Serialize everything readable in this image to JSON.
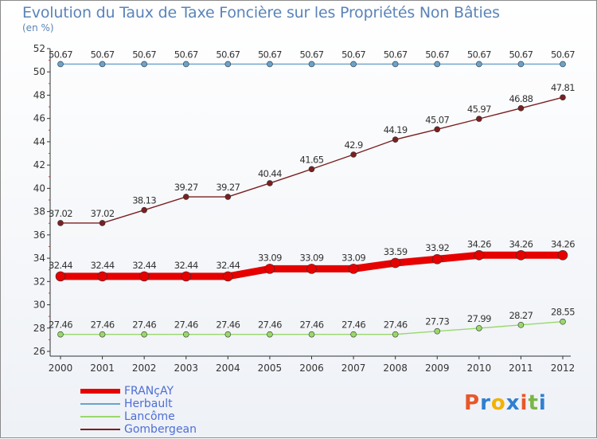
{
  "header": {
    "title": "Evolution du Taux de Taxe Foncière sur les Propriétés Non Bâties",
    "subtitle": "(en %)"
  },
  "logo": {
    "text": "Proxiti",
    "colors": [
      "#e8572a",
      "#2f7fd1",
      "#f2b200",
      "#2f7fd1",
      "#e8572a",
      "#7ab648",
      "#2f7fd1"
    ]
  },
  "chart_data": {
    "type": "line",
    "title": "Evolution du Taux de Taxe Foncière sur les Propriétés Non Bâties",
    "subtitle": "(en %)",
    "xlabel": "",
    "ylabel": "",
    "categories": [
      "2000",
      "2001",
      "2002",
      "2003",
      "2004",
      "2005",
      "2006",
      "2007",
      "2008",
      "2009",
      "2010",
      "2011",
      "2012"
    ],
    "ylim": [
      26,
      52
    ],
    "yticks": [
      26,
      28,
      30,
      32,
      34,
      36,
      38,
      40,
      42,
      44,
      46,
      48,
      50,
      52
    ],
    "grid": false,
    "legend_position": "bottom-left",
    "series": [
      {
        "name": "FRANçAY",
        "color": "#e60000",
        "values": [
          32.44,
          32.44,
          32.44,
          32.44,
          32.44,
          33.09,
          33.09,
          33.09,
          33.59,
          33.92,
          34.26,
          34.26,
          34.26
        ],
        "labels": [
          "32.44",
          "32.44",
          "32.44",
          "32.44",
          "32.44",
          "33.09",
          "33.09",
          "33.09",
          "33.59",
          "33.92",
          "34.26",
          "34.26",
          "34.26"
        ]
      },
      {
        "name": "Herbault",
        "color": "#6aa2cc",
        "values": [
          50.67,
          50.67,
          50.67,
          50.67,
          50.67,
          50.67,
          50.67,
          50.67,
          50.67,
          50.67,
          50.67,
          50.67,
          50.67
        ],
        "labels": [
          "50.67",
          "50.67",
          "50.67",
          "50.67",
          "50.67",
          "50.67",
          "50.67",
          "50.67",
          "50.67",
          "50.67",
          "50.67",
          "50.67",
          "50.67"
        ]
      },
      {
        "name": "Lancôme",
        "color": "#99d86b",
        "values": [
          27.46,
          27.46,
          27.46,
          27.46,
          27.46,
          27.46,
          27.46,
          27.46,
          27.46,
          27.73,
          27.99,
          28.27,
          28.55
        ],
        "labels": [
          "27.46",
          "27.46",
          "27.46",
          "27.46",
          "27.46",
          "27.46",
          "27.46",
          "27.46",
          "27.46",
          "27.73",
          "27.99",
          "28.27",
          "28.55"
        ]
      },
      {
        "name": "Gombergean",
        "color": "#7a2020",
        "values": [
          37.02,
          37.02,
          38.13,
          39.27,
          39.27,
          40.44,
          41.65,
          42.9,
          44.19,
          45.07,
          45.97,
          46.88,
          47.81
        ],
        "labels": [
          "37.02",
          "37.02",
          "38.13",
          "39.27",
          "39.27",
          "40.44",
          "41.65",
          "42.9",
          "44.19",
          "45.07",
          "45.97",
          "46.88",
          "47.81"
        ]
      }
    ]
  }
}
